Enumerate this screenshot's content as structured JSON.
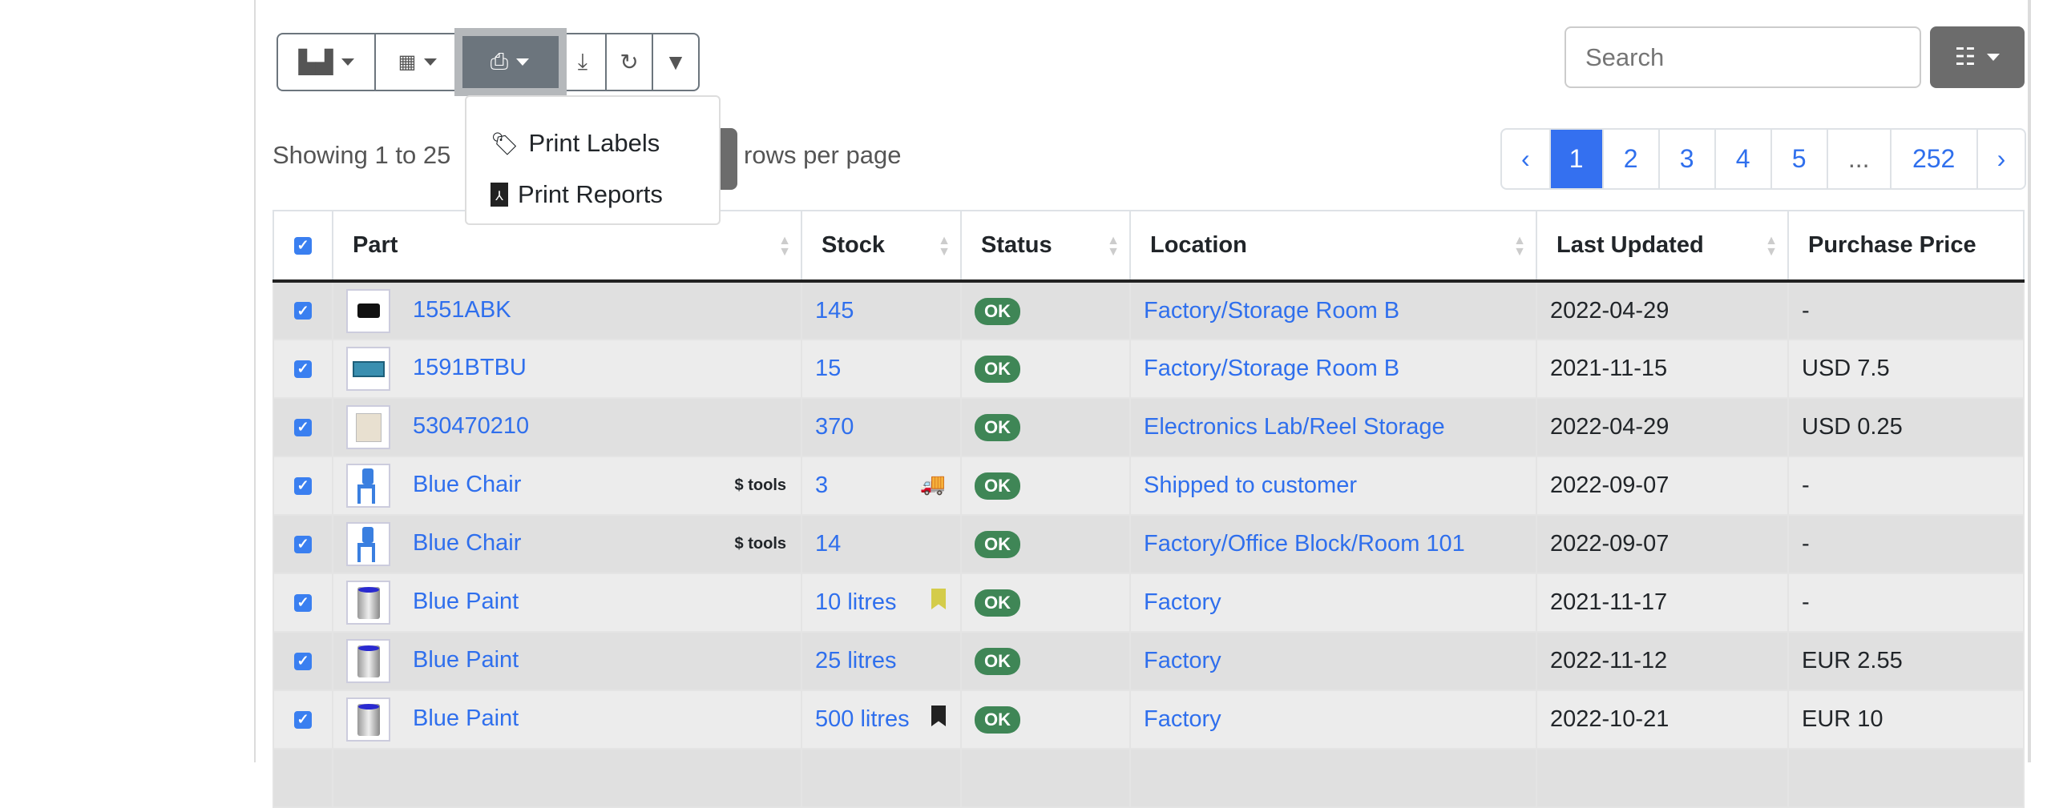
{
  "toolbar": {
    "buttons": [
      "boxes-icon",
      "qrcode-icon",
      "print-icon",
      "download-icon",
      "refresh-icon",
      "filter-icon"
    ]
  },
  "print_menu": {
    "items": [
      {
        "label": "Print Labels",
        "icon": "tag-icon"
      },
      {
        "label": "Print Reports",
        "icon": "file-pdf-icon"
      }
    ]
  },
  "showing": "Showing 1 to 25",
  "rows_per_page": "rows per page",
  "search": {
    "placeholder": "Search"
  },
  "pagination": {
    "prev": "‹",
    "pages": [
      "1",
      "2",
      "3",
      "4",
      "5",
      "...",
      "252"
    ],
    "next": "›",
    "active": "1"
  },
  "columns": [
    "Part",
    "Stock",
    "Status",
    "Location",
    "Last Updated",
    "Purchase Price"
  ],
  "rows": [
    {
      "part": "1551ABK",
      "stock": "145",
      "status": "OK",
      "location": "Factory/Storage Room B",
      "updated": "2022-04-29",
      "price": "-",
      "img": "black-box"
    },
    {
      "part": "1591BTBU",
      "stock": "15",
      "status": "OK",
      "location": "Factory/Storage Room B",
      "updated": "2021-11-15",
      "price": "USD 7.5",
      "img": "blue-enclosure"
    },
    {
      "part": "530470210",
      "stock": "370",
      "status": "OK",
      "location": "Electronics Lab/Reel Storage",
      "updated": "2022-04-29",
      "price": "USD 0.25",
      "img": "connector"
    },
    {
      "part": "Blue Chair",
      "stock": "3",
      "status": "OK",
      "location": "Shipped to customer",
      "updated": "2022-09-07",
      "price": "-",
      "img": "chair",
      "part_icons": "$ tools",
      "stock_icon": "truck-icon"
    },
    {
      "part": "Blue Chair",
      "stock": "14",
      "status": "OK",
      "location": "Factory/Office Block/Room 101",
      "updated": "2022-09-07",
      "price": "-",
      "img": "chair",
      "part_icons": "$ tools"
    },
    {
      "part": "Blue Paint",
      "stock": "10 litres",
      "status": "OK",
      "location": "Factory",
      "updated": "2021-11-17",
      "price": "-",
      "img": "paint",
      "stock_icon": "bookmark-yellow-icon"
    },
    {
      "part": "Blue Paint",
      "stock": "25 litres",
      "status": "OK",
      "location": "Factory",
      "updated": "2022-11-12",
      "price": "EUR 2.55",
      "img": "paint"
    },
    {
      "part": "Blue Paint",
      "stock": "500 litres",
      "status": "OK",
      "location": "Factory",
      "updated": "2022-10-21",
      "price": "EUR 10",
      "img": "paint",
      "stock_icon": "bookmark-black-icon"
    }
  ],
  "colors": {
    "accent": "#3470f0",
    "ok": "#3f8656",
    "toolbar": "#6c757d"
  }
}
